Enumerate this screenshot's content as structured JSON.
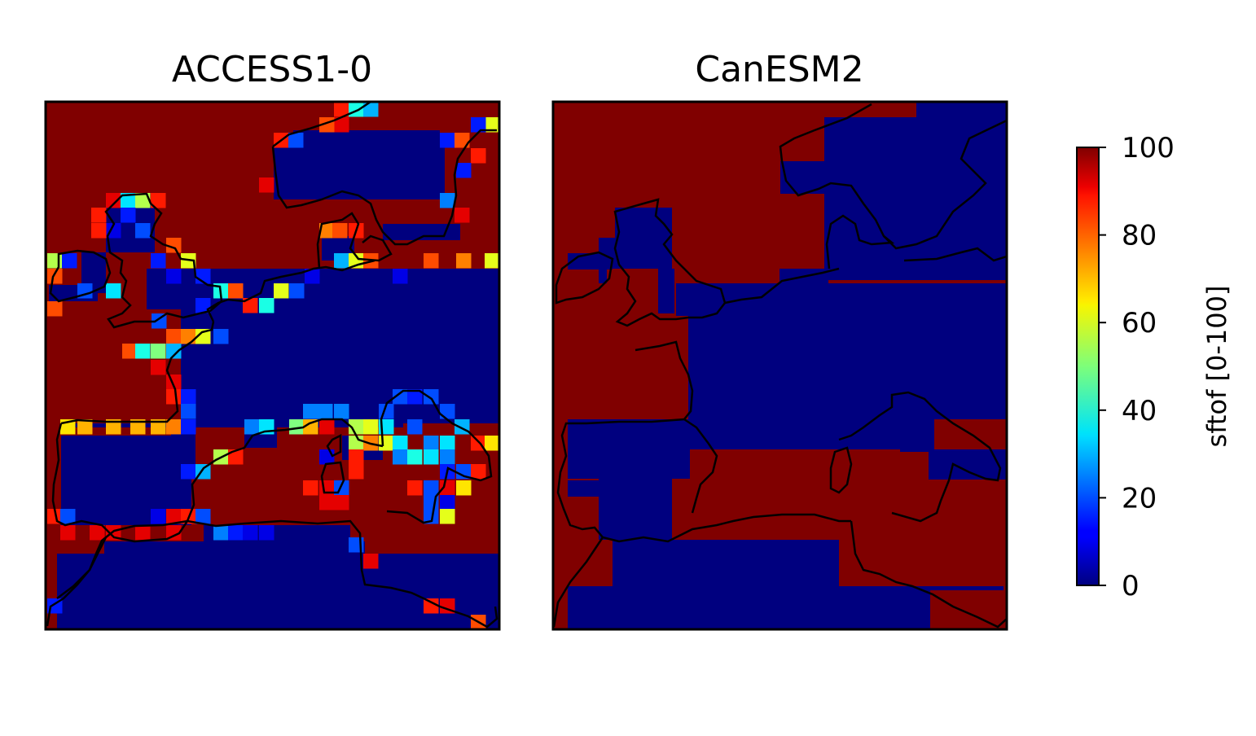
{
  "panels": [
    {
      "title": "ACCESS1-0",
      "model": "ACCESS1-0",
      "grid": "fine"
    },
    {
      "title": "CanESM2",
      "model": "CanESM2",
      "grid": "coarse"
    }
  ],
  "colorbar": {
    "label": "sftof [0-100]",
    "colormap": "jet",
    "min": 0,
    "max": 100,
    "ticks": [
      "0",
      "20",
      "40",
      "60",
      "80",
      "100"
    ]
  },
  "colors": {
    "land": "#800000",
    "ocean": "#00007f",
    "coastline": "#000000"
  }
}
